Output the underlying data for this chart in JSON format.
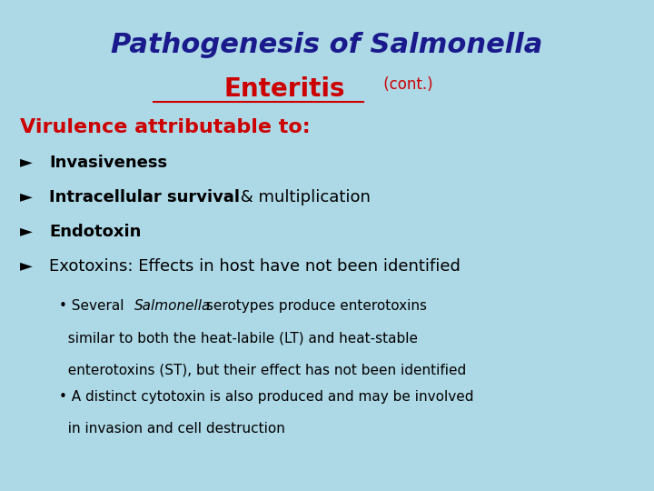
{
  "title_line1": "Pathogenesis of Salmonella",
  "title_line1_color": "#1a1a8c",
  "title_line2_main": "Enteritis",
  "title_line2_suffix": " (cont.)",
  "title_line2_color": "#cc0000",
  "subtitle": "Virulence attributable to:",
  "subtitle_color": "#cc0000",
  "bullet_arrow": "Ø",
  "bullets": [
    {
      "bold": "Invasiveness",
      "normal": ""
    },
    {
      "bold": "Intracellular survival",
      "normal": " & multiplication"
    },
    {
      "bold": "Endotoxin",
      "normal": ""
    },
    {
      "bold": "",
      "normal": "Exotoxins: Effects in host have not been identified"
    }
  ],
  "sub_bullets": [
    "• Several Salmonella serotypes produce enterotoxins\n  similar to both the heat-labile (LT) and heat-stable\n  enterotoxins (ST), but their effect has not been identified",
    "• A distinct cytotoxin is also produced and may be involved\n  in invasion and cell destruction"
  ],
  "bg_color": "#add8e6",
  "text_color": "#000000"
}
